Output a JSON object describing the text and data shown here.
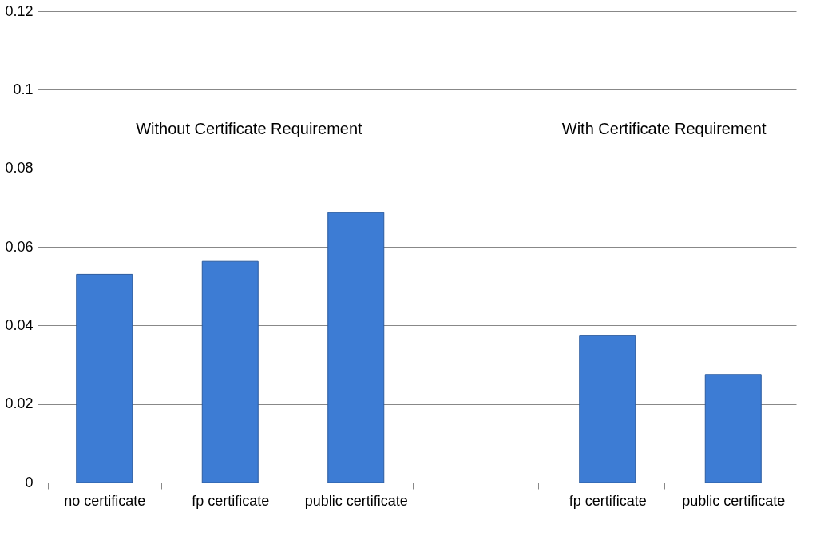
{
  "chart_data": {
    "type": "bar",
    "categories": [
      "no certificate",
      "fp certificate",
      "public certificate",
      null,
      "fp certificate",
      "public certificate"
    ],
    "values": [
      0.053,
      0.0563,
      0.0687,
      null,
      0.0375,
      0.0275
    ],
    "color": "#3d7cd4",
    "ylim": [
      0,
      0.12
    ],
    "yticks": [
      0,
      0.02,
      0.04,
      0.06,
      0.08,
      0.1,
      0.12
    ],
    "grid": "y",
    "annotations": [
      "Without Certificate Requirement",
      "With Certificate Requirement"
    ]
  }
}
